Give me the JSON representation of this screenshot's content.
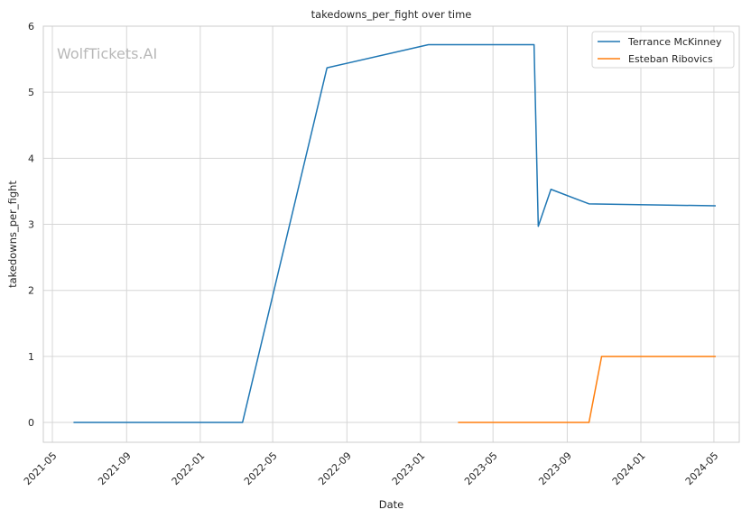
{
  "watermark": "WolfTickets.AI",
  "chart_data": {
    "type": "line",
    "title": "takedowns_per_fight over time",
    "xlabel": "Date",
    "ylabel": "takedowns_per_fight",
    "xlim": [
      "2021-04-16",
      "2024-06-12"
    ],
    "ylim": [
      -0.3,
      6
    ],
    "yticks": [
      0,
      1,
      2,
      3,
      4,
      5,
      6
    ],
    "xticks": [
      "2021-05-01",
      "2021-09-01",
      "2022-01-01",
      "2022-05-01",
      "2022-09-01",
      "2023-01-01",
      "2023-05-01",
      "2023-09-01",
      "2024-01-01",
      "2024-05-01"
    ],
    "xtick_labels": [
      "2021-05",
      "2021-09",
      "2022-01",
      "2022-05",
      "2022-09",
      "2023-01",
      "2023-05",
      "2023-09",
      "2024-01",
      "2024-05"
    ],
    "grid": true,
    "legend_position": "top-right",
    "series": [
      {
        "name": "Terrance McKinney",
        "color": "#1f77b4",
        "points": [
          {
            "x": "2021-06-05",
            "y": 0
          },
          {
            "x": "2022-03-12",
            "y": 0
          },
          {
            "x": "2022-07-30",
            "y": 5.37
          },
          {
            "x": "2023-01-14",
            "y": 5.72
          },
          {
            "x": "2023-07-08",
            "y": 5.72
          },
          {
            "x": "2023-07-15",
            "y": 2.97
          },
          {
            "x": "2023-08-05",
            "y": 3.53
          },
          {
            "x": "2023-10-07",
            "y": 3.31
          },
          {
            "x": "2024-05-04",
            "y": 3.28
          }
        ]
      },
      {
        "name": "Esteban Ribovics",
        "color": "#ff7f0e",
        "points": [
          {
            "x": "2023-03-04",
            "y": 0
          },
          {
            "x": "2023-10-07",
            "y": 0
          },
          {
            "x": "2023-10-28",
            "y": 1
          },
          {
            "x": "2024-05-04",
            "y": 1
          }
        ]
      }
    ]
  }
}
